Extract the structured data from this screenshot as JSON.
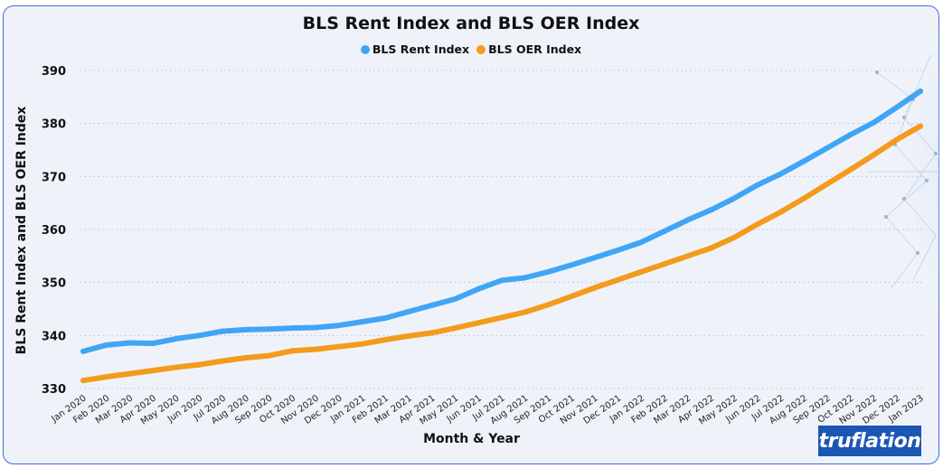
{
  "chart_data": {
    "type": "line",
    "title": "BLS Rent Index and BLS OER Index",
    "xlabel": "Month & Year",
    "ylabel": "BLS Rent Index and BLS OER Index",
    "ylim": [
      330,
      390
    ],
    "yticks": [
      330,
      340,
      350,
      360,
      370,
      380,
      390
    ],
    "grid": true,
    "legend_position": "top-center",
    "categories": [
      "Jan 2020",
      "Feb 2020",
      "Mar 2020",
      "Apr 2020",
      "May 2020",
      "Jun 2020",
      "Jul 2020",
      "Aug 2020",
      "Sep 2020",
      "Oct 2020",
      "Nov 2020",
      "Dec 2020",
      "Jan 2021",
      "Feb 2021",
      "Mar 2021",
      "Apr 2021",
      "May 2021",
      "Jun 2021",
      "Jul 2021",
      "Aug 2021",
      "Sep 2021",
      "Oct 2021",
      "Nov 2021",
      "Dec 2021",
      "Jan 2022",
      "Feb 2022",
      "Mar 2022",
      "Apr 2022",
      "May 2022",
      "Jun 2022",
      "Jul 2022",
      "Aug 2022",
      "Sep 2022",
      "Oct 2022",
      "Nov 2022",
      "Dec 2022",
      "Jan 2023"
    ],
    "series": [
      {
        "name": "BLS Rent Index",
        "color": "#41a5f5",
        "values": [
          337.0,
          338.2,
          338.6,
          338.5,
          339.4,
          340.0,
          340.8,
          341.1,
          341.2,
          341.4,
          341.5,
          341.9,
          342.6,
          343.3,
          344.5,
          345.7,
          346.9,
          348.8,
          350.4,
          350.9,
          352.0,
          353.3,
          354.7,
          356.1,
          357.6,
          359.7,
          361.8,
          363.7,
          365.9,
          368.4,
          370.5,
          372.9,
          375.4,
          377.9,
          380.2,
          383.1,
          386.1
        ]
      },
      {
        "name": "BLS OER Index",
        "color": "#f39b1c",
        "values": [
          331.5,
          332.2,
          332.8,
          333.4,
          334.0,
          334.5,
          335.2,
          335.8,
          336.2,
          337.1,
          337.4,
          337.9,
          338.4,
          339.2,
          339.9,
          340.5,
          341.4,
          342.4,
          343.4,
          344.4,
          345.8,
          347.4,
          349.0,
          350.5,
          352.0,
          353.5,
          355.0,
          356.5,
          358.5,
          361.0,
          363.3,
          365.9,
          368.6,
          371.3,
          374.1,
          377.0,
          379.5
        ]
      }
    ]
  },
  "logo": {
    "text": "truflation"
  }
}
